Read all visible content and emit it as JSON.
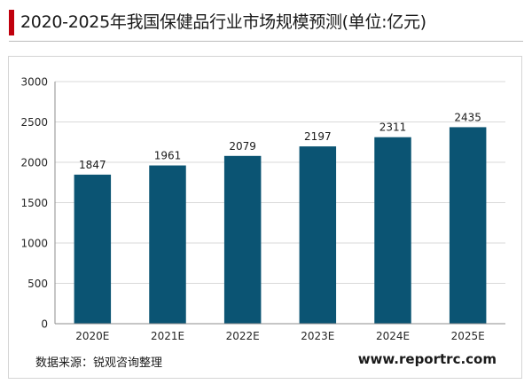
{
  "header": {
    "title": "2020-2025年我国保健品行业市场规模预测(单位:亿元)"
  },
  "footer": {
    "source": "数据来源：锐观咨询整理",
    "website": "www.reportrc.com"
  },
  "colors": {
    "bar": "#0b5473",
    "accent": "#c0000d",
    "grid": "#d9d9d9",
    "axis": "#8c8c8c"
  },
  "chart_data": {
    "type": "bar",
    "title": "2020-2025年我国保健品行业市场规模预测(单位:亿元)",
    "categories": [
      "2020E",
      "2021E",
      "2022E",
      "2023E",
      "2024E",
      "2025E"
    ],
    "values": [
      1847,
      1961,
      2079,
      2197,
      2311,
      2435
    ],
    "ylim": [
      0,
      3000
    ],
    "yticks": [
      0,
      500,
      1000,
      1500,
      2000,
      2500,
      3000
    ],
    "grid": true,
    "legend": "none",
    "data_labels": true
  }
}
